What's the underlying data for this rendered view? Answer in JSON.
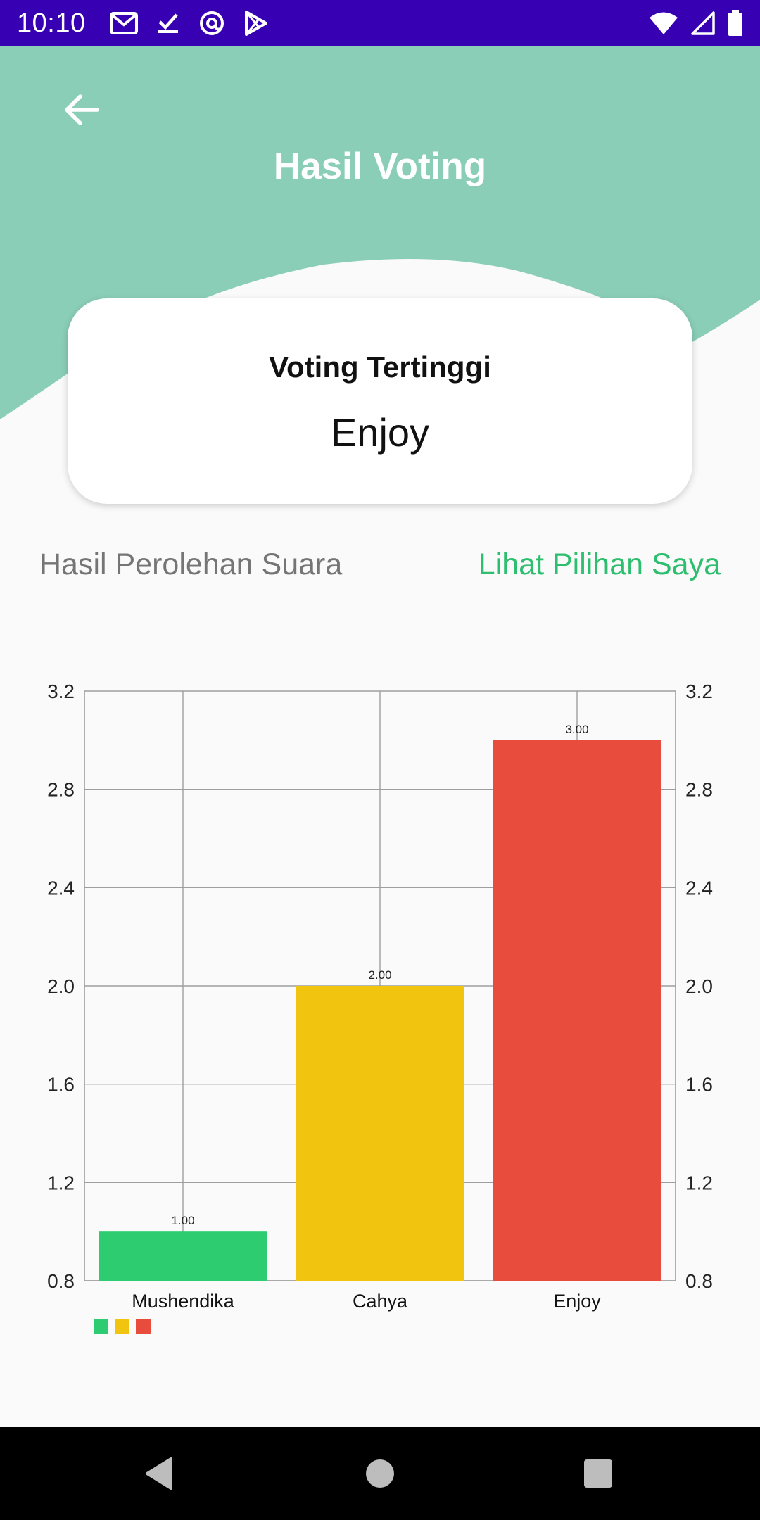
{
  "status_bar": {
    "time": "10:10",
    "left_icons": [
      "gmail-icon",
      "check-download-icon",
      "at-sign-icon",
      "play-store-icon"
    ],
    "right_icons": [
      "wifi-icon",
      "cell-signal-icon",
      "battery-icon"
    ]
  },
  "header": {
    "title": "Hasil Voting",
    "back_icon": "arrow-back-icon",
    "bg_color": "#8ACEB8"
  },
  "card": {
    "label": "Voting Tertinggi",
    "value": "Enjoy"
  },
  "section": {
    "title": "Hasil Perolehan Suara",
    "link": "Lihat Pilihan Saya",
    "link_color": "#2EBE6F"
  },
  "chart_data": {
    "type": "bar",
    "categories": [
      "Mushendika",
      "Cahya",
      "Enjoy"
    ],
    "values": [
      1.0,
      2.0,
      3.0
    ],
    "value_labels": [
      "1.00",
      "2.00",
      "3.00"
    ],
    "colors": [
      "#2ECC71",
      "#F1C40F",
      "#E74C3C"
    ],
    "ylim": [
      0.8,
      3.2
    ],
    "yticks": [
      "0.8",
      "1.2",
      "1.6",
      "2.0",
      "2.4",
      "2.8",
      "3.2"
    ],
    "ytick_values": [
      0.8,
      1.2,
      1.6,
      2.0,
      2.4,
      2.8,
      3.2
    ],
    "right_axis": true,
    "grid": true,
    "legend": "bottom-left"
  },
  "nav_bar": {
    "buttons": [
      "back-triangle-icon",
      "home-circle-icon",
      "recents-square-icon"
    ]
  }
}
